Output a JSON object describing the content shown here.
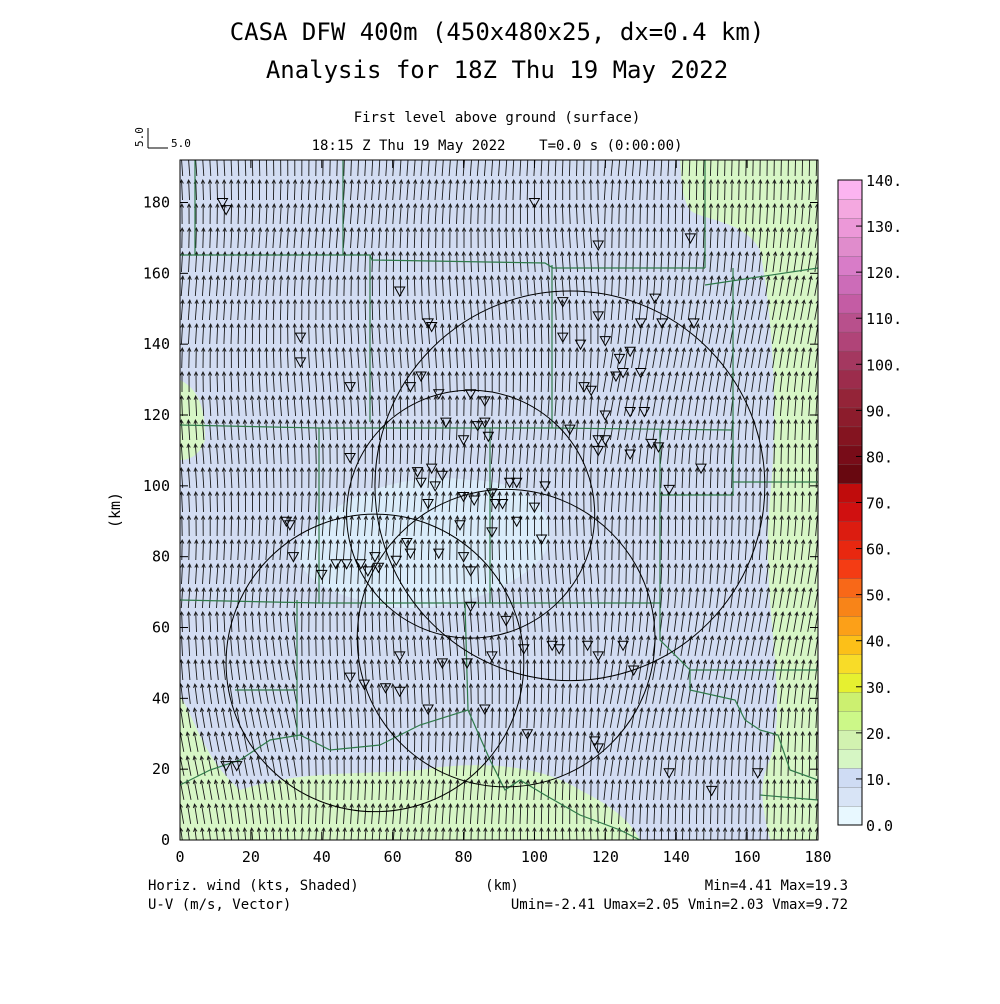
{
  "title_line1": "CASA DFW 400m (450x480x25, dx=0.4 km)",
  "title_line2": "Analysis for 18Z Thu 19 May 2022",
  "subtitle_line1": "First level above ground (surface)",
  "subtitle_line2": "18:15 Z Thu 19 May 2022    T=0.0 s (0:00:00)",
  "vector_ref": {
    "vertical_label": "5.0",
    "horizontal_label": "5.0"
  },
  "axes": {
    "xlabel": "(km)",
    "ylabel": "(km)",
    "x_range": [
      0,
      180
    ],
    "y_range": [
      0,
      192
    ],
    "x_ticks": [
      "0",
      "20",
      "40",
      "60",
      "80",
      "100",
      "120",
      "140",
      "160",
      "180"
    ],
    "y_ticks": [
      "0",
      "20",
      "40",
      "60",
      "80",
      "100",
      "120",
      "140",
      "160",
      "180"
    ]
  },
  "colorbar": {
    "labels": [
      "0.0",
      "10.",
      "20.",
      "30.",
      "40.",
      "50.",
      "60.",
      "70.",
      "80.",
      "90.",
      "100.",
      "110.",
      "120.",
      "130.",
      "140."
    ],
    "colors": [
      "#e8f8ff",
      "#d8e4f6",
      "#cfdcf4",
      "#d6f6c4",
      "#d2f2b0",
      "#ccf888",
      "#ccf070",
      "#e6f030",
      "#f8dc28",
      "#fcc018",
      "#fca018",
      "#f88418",
      "#f86818",
      "#f43c14",
      "#e82810",
      "#dc1c10",
      "#d01010",
      "#c00c0c",
      "#680810",
      "#780c18",
      "#841420",
      "#8c1c2c",
      "#942438",
      "#9c2c4c",
      "#a43860",
      "#b04478",
      "#b8508c",
      "#c45ca4",
      "#cc6cb8",
      "#d87cc8",
      "#e08ccc",
      "#ec98d8",
      "#f4a8e0",
      "#fcb4f0"
    ]
  },
  "footer": {
    "left_line1": "Horiz. wind (kts, Shaded)",
    "left_line2": "U-V (m/s, Vector)",
    "center": "(km)",
    "right_line1": "Min=4.41 Max=19.3",
    "right_line2": "Umin=-2.41 Umax=2.05 Vmin=2.03 Vmax=9.72"
  },
  "chart_data": {
    "type": "heatmap",
    "field": "horizontal wind speed (kts) with wind vectors (m/s)",
    "min": 4.41,
    "max": 19.3,
    "umin": -2.41,
    "umax": 2.05,
    "vmin": 2.03,
    "vmax": 9.72,
    "radar_rings": [
      {
        "cx": 110,
        "cy": 100,
        "r": 55
      },
      {
        "cx": 82,
        "cy": 92,
        "r": 35
      },
      {
        "cx": 55,
        "cy": 50,
        "r": 42
      },
      {
        "cx": 92,
        "cy": 57,
        "r": 42
      }
    ],
    "stations_km": [
      [
        12,
        180
      ],
      [
        13,
        178
      ],
      [
        100,
        180
      ],
      [
        118,
        168
      ],
      [
        144,
        170
      ],
      [
        62,
        155
      ],
      [
        70,
        146
      ],
      [
        71,
        145
      ],
      [
        134,
        153
      ],
      [
        108,
        152
      ],
      [
        118,
        148
      ],
      [
        34,
        142
      ],
      [
        34,
        135
      ],
      [
        108,
        142
      ],
      [
        113,
        140
      ],
      [
        120,
        141
      ],
      [
        124,
        136
      ],
      [
        127,
        138
      ],
      [
        130,
        146
      ],
      [
        136,
        146
      ],
      [
        145,
        146
      ],
      [
        123,
        131
      ],
      [
        125,
        132
      ],
      [
        130,
        132
      ],
      [
        114,
        128
      ],
      [
        116,
        127
      ],
      [
        120,
        120
      ],
      [
        127,
        121
      ],
      [
        131,
        121
      ],
      [
        133,
        112
      ],
      [
        48,
        128
      ],
      [
        65,
        128
      ],
      [
        68,
        131
      ],
      [
        73,
        126
      ],
      [
        82,
        126
      ],
      [
        86,
        124
      ],
      [
        75,
        118
      ],
      [
        84,
        117
      ],
      [
        86,
        118
      ],
      [
        87,
        114
      ],
      [
        80,
        113
      ],
      [
        110,
        116
      ],
      [
        118,
        113
      ],
      [
        120,
        113
      ],
      [
        118,
        110
      ],
      [
        127,
        109
      ],
      [
        135,
        111
      ],
      [
        138,
        99
      ],
      [
        147,
        105
      ],
      [
        48,
        108
      ],
      [
        67,
        104
      ],
      [
        68,
        101
      ],
      [
        71,
        105
      ],
      [
        74,
        103
      ],
      [
        70,
        95
      ],
      [
        72,
        100
      ],
      [
        80,
        97
      ],
      [
        83,
        96
      ],
      [
        89,
        95
      ],
      [
        88,
        98
      ],
      [
        93,
        101
      ],
      [
        95,
        101
      ],
      [
        91,
        95
      ],
      [
        100,
        94
      ],
      [
        103,
        100
      ],
      [
        95,
        90
      ],
      [
        79,
        89
      ],
      [
        88,
        87
      ],
      [
        102,
        85
      ],
      [
        73,
        81
      ],
      [
        80,
        80
      ],
      [
        82,
        76
      ],
      [
        64,
        84
      ],
      [
        65,
        81
      ],
      [
        30,
        90
      ],
      [
        31,
        89
      ],
      [
        32,
        80
      ],
      [
        40,
        75
      ],
      [
        44,
        78
      ],
      [
        47,
        78
      ],
      [
        51,
        78
      ],
      [
        53,
        76
      ],
      [
        55,
        80
      ],
      [
        56,
        77
      ],
      [
        61,
        79
      ],
      [
        82,
        66
      ],
      [
        92,
        62
      ],
      [
        105,
        55
      ],
      [
        115,
        55
      ],
      [
        125,
        55
      ],
      [
        62,
        52
      ],
      [
        74,
        50
      ],
      [
        81,
        50
      ],
      [
        88,
        52
      ],
      [
        97,
        54
      ],
      [
        107,
        54
      ],
      [
        118,
        52
      ],
      [
        128,
        48
      ],
      [
        48,
        46
      ],
      [
        52,
        44
      ],
      [
        58,
        43
      ],
      [
        62,
        42
      ],
      [
        70,
        37
      ],
      [
        86,
        37
      ],
      [
        98,
        30
      ],
      [
        117,
        28
      ],
      [
        118,
        26
      ],
      [
        13,
        21
      ],
      [
        16,
        21
      ],
      [
        138,
        19
      ],
      [
        150,
        14
      ],
      [
        163,
        19
      ]
    ]
  }
}
